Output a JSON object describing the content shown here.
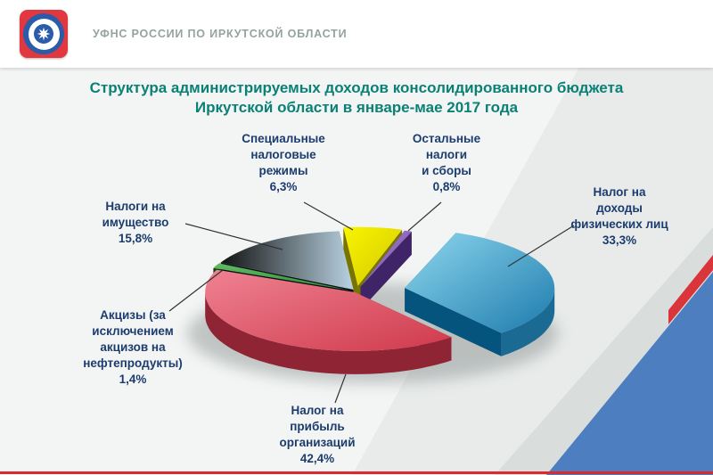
{
  "header": {
    "org_label": "УФНС РОССИИ ПО ИРКУТСКОЙ ОБЛАСТИ"
  },
  "title": {
    "line1": "Структура администрируемых доходов консолидированного бюджета",
    "line2": "Иркутской области в январе-мае 2017 года"
  },
  "chart_data": {
    "type": "pie",
    "style": "3d-exploded",
    "title": "Структура администрируемых доходов консолидированного бюджета Иркутской области в январе-мае 2017 года",
    "unit": "%",
    "start_angle_deg": 20,
    "direction": "clockwise",
    "legend_position": "labels-with-leader-lines",
    "slices": [
      {
        "label": "Налог на доходы физических лиц",
        "value": 33.3,
        "pct_label": "33,3%",
        "display": "Налог на\nдоходы\nфизических лиц\n33,3%",
        "colors": {
          "light": "#8ed7ee",
          "dark": "#1d7bad",
          "side": "#1b6a94"
        }
      },
      {
        "label": "Налог на прибыль организаций",
        "value": 42.4,
        "pct_label": "42,4%",
        "display": "Налог на\nприбыль\nорганизаций\n42,4%",
        "colors": {
          "light": "#ef8292",
          "dark": "#cf3a4c",
          "side": "#8e2434"
        }
      },
      {
        "label": "Акцизы (за исключением акцизов на нефтепродукты)",
        "value": 1.4,
        "pct_label": "1,4%",
        "display": "Акцизы (за\nисключением\nакцизов на\nнефтепродукты)\n1,4%",
        "colors": {
          "light": "#63b963",
          "dark": "#2f8f36",
          "side": "#1c5e22"
        }
      },
      {
        "label": "Налоги на имущество",
        "value": 15.8,
        "pct_label": "15,8%",
        "display": "Налоги на\nимущество\n15,8%",
        "colors": {
          "light": "#121212",
          "dark": "#b9d3e2",
          "side": "#20262b",
          "grad": "x"
        }
      },
      {
        "label": "Специальные налоговые режимы",
        "value": 6.3,
        "pct_label": "6,3%",
        "display": "Специальные\nналоговые\nрежимы\n6,3%",
        "colors": {
          "light": "#f9f500",
          "dark": "#d2c800",
          "side": "#8f8a00"
        }
      },
      {
        "label": "Остальные налоги и сборы",
        "value": 0.8,
        "pct_label": "0,8%",
        "display": "Остальные\nналоги\nи сборы\n0,8%",
        "colors": {
          "light": "#a67fd4",
          "dark": "#7a52a8",
          "side": "#553a7d"
        }
      }
    ]
  },
  "theme": {
    "background": "#f3f5f4",
    "title_color": "#0b8076",
    "label_color": "#1c3c6e",
    "header_text_color": "#95a39e",
    "accent_red": "#d92b2f",
    "accent_blue": "#4d7ec0",
    "logo_red": "#e0383e",
    "logo_blue": "#2a5caa"
  }
}
